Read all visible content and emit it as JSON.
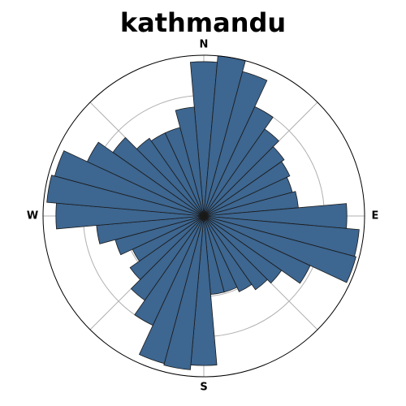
{
  "title": "kathmandu",
  "chart_data": {
    "type": "polar-bar",
    "title": "kathmandu",
    "direction_labels": [
      "N",
      "E",
      "S",
      "W"
    ],
    "bin_count": 36,
    "bin_width_deg": 10,
    "direction_deg": [
      0,
      10,
      20,
      30,
      40,
      50,
      60,
      70,
      80,
      90,
      100,
      110,
      120,
      130,
      140,
      150,
      160,
      170,
      180,
      190,
      200,
      210,
      220,
      230,
      240,
      250,
      260,
      270,
      280,
      290,
      300,
      310,
      320,
      330,
      340,
      350
    ],
    "values": [
      0.96,
      1.0,
      0.93,
      0.75,
      0.66,
      0.61,
      0.59,
      0.57,
      0.59,
      0.89,
      0.97,
      0.98,
      0.73,
      0.59,
      0.56,
      0.52,
      0.49,
      0.49,
      0.93,
      0.96,
      0.95,
      0.75,
      0.64,
      0.56,
      0.49,
      0.57,
      0.67,
      0.92,
      0.98,
      0.96,
      0.8,
      0.69,
      0.59,
      0.57,
      0.57,
      0.68
    ],
    "rlim": [
      0,
      1.0
    ],
    "ring_levels": [
      0.25,
      0.5,
      0.75
    ],
    "grid": true,
    "colors": {
      "bar": "#3d6690",
      "bar_edge": "#1a1a1a",
      "grid": "#b0b0b0",
      "outline": "#000000"
    }
  }
}
